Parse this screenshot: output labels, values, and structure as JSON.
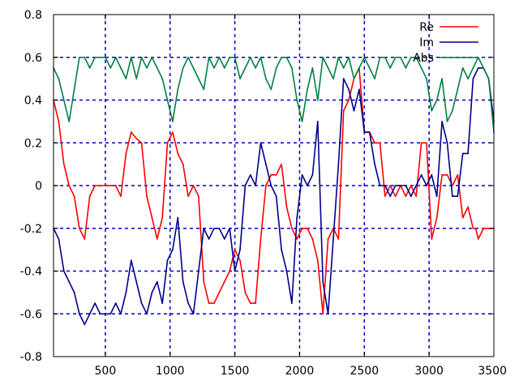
{
  "chart_data": {
    "type": "line",
    "title": "",
    "xlabel": "",
    "ylabel": "",
    "xlim": [
      100,
      3500
    ],
    "ylim": [
      -0.8,
      0.8
    ],
    "grid": true,
    "legend_position": "top-right",
    "x_ticks": [
      500,
      1000,
      1500,
      2000,
      2500,
      3000,
      3500
    ],
    "x_tick_labels": [
      "500",
      "1000",
      "1500",
      "2000",
      "2500",
      "3000",
      "3500"
    ],
    "y_ticks": [
      -0.8,
      -0.6,
      -0.4,
      -0.2,
      0,
      0.2,
      0.4,
      0.6,
      0.8
    ],
    "y_tick_labels": [
      "-0.8",
      "-0.6",
      "-0.4",
      "-0.2",
      "0",
      "0.2",
      "0.4",
      "0.6",
      "0.8"
    ],
    "series": [
      {
        "name": "Re",
        "color": "#ff0000",
        "x": [
          100,
          140,
          180,
          220,
          260,
          300,
          340,
          380,
          420,
          460,
          500,
          540,
          580,
          620,
          660,
          700,
          740,
          780,
          820,
          860,
          900,
          940,
          980,
          1020,
          1060,
          1100,
          1140,
          1180,
          1220,
          1260,
          1300,
          1340,
          1380,
          1420,
          1460,
          1500,
          1540,
          1580,
          1620,
          1660,
          1700,
          1740,
          1780,
          1820,
          1860,
          1900,
          1940,
          1980,
          2020,
          2060,
          2100,
          2140,
          2180,
          2220,
          2260,
          2300,
          2340,
          2380,
          2420,
          2460,
          2500,
          2540,
          2580,
          2620,
          2660,
          2700,
          2740,
          2780,
          2820,
          2860,
          2900,
          2940,
          2980,
          3020,
          3060,
          3100,
          3140,
          3180,
          3220,
          3260,
          3300,
          3340,
          3360,
          3380,
          3420,
          3460,
          3500
        ],
        "y": [
          0.4,
          0.3,
          0.1,
          0.0,
          -0.05,
          -0.2,
          -0.25,
          -0.05,
          0.0,
          0.0,
          0.0,
          0.0,
          0.0,
          -0.05,
          0.15,
          0.25,
          0.22,
          0.2,
          -0.05,
          -0.15,
          -0.25,
          -0.15,
          0.2,
          0.25,
          0.15,
          0.1,
          -0.05,
          0.0,
          -0.05,
          -0.45,
          -0.55,
          -0.55,
          -0.5,
          -0.45,
          -0.4,
          -0.3,
          -0.35,
          -0.5,
          -0.55,
          -0.55,
          -0.25,
          0.0,
          0.05,
          0.05,
          0.1,
          -0.1,
          -0.2,
          -0.25,
          -0.2,
          -0.2,
          -0.25,
          -0.35,
          -0.6,
          -0.25,
          -0.2,
          -0.25,
          0.35,
          0.4,
          0.5,
          0.55,
          0.25,
          0.25,
          0.2,
          0.2,
          -0.05,
          0.0,
          -0.05,
          0.0,
          -0.05,
          0.0,
          -0.05,
          0.2,
          0.2,
          -0.25,
          -0.15,
          0.05,
          0.05,
          0.0,
          0.05,
          -0.15,
          -0.1,
          -0.2,
          -0.2,
          -0.25,
          -0.2,
          -0.2,
          -0.2
        ]
      },
      {
        "name": "Im",
        "color": "#00008b",
        "x": [
          100,
          140,
          180,
          220,
          260,
          300,
          340,
          380,
          420,
          460,
          500,
          540,
          580,
          620,
          660,
          700,
          740,
          780,
          820,
          860,
          900,
          940,
          980,
          1020,
          1060,
          1100,
          1140,
          1180,
          1220,
          1260,
          1300,
          1340,
          1380,
          1420,
          1460,
          1500,
          1540,
          1580,
          1620,
          1660,
          1700,
          1740,
          1780,
          1820,
          1860,
          1900,
          1940,
          1980,
          2020,
          2060,
          2100,
          2140,
          2180,
          2220,
          2260,
          2300,
          2340,
          2380,
          2420,
          2460,
          2500,
          2540,
          2580,
          2620,
          2660,
          2700,
          2740,
          2780,
          2820,
          2860,
          2900,
          2940,
          2980,
          3020,
          3060,
          3100,
          3140,
          3180,
          3220,
          3260,
          3300,
          3340,
          3380,
          3420,
          3460,
          3500
        ],
        "y": [
          -0.2,
          -0.25,
          -0.4,
          -0.45,
          -0.5,
          -0.6,
          -0.65,
          -0.6,
          -0.55,
          -0.6,
          -0.6,
          -0.6,
          -0.55,
          -0.6,
          -0.5,
          -0.35,
          -0.45,
          -0.55,
          -0.6,
          -0.5,
          -0.45,
          -0.55,
          -0.35,
          -0.3,
          -0.15,
          -0.45,
          -0.55,
          -0.6,
          -0.4,
          -0.2,
          -0.25,
          -0.2,
          -0.2,
          -0.25,
          -0.2,
          -0.4,
          -0.3,
          0.0,
          0.05,
          0.0,
          0.2,
          0.1,
          0.0,
          -0.05,
          -0.3,
          -0.4,
          -0.55,
          -0.15,
          0.05,
          0.0,
          0.05,
          0.3,
          -0.45,
          -0.6,
          -0.25,
          0.1,
          0.5,
          0.45,
          0.35,
          0.45,
          0.25,
          0.25,
          0.1,
          0.0,
          0.0,
          -0.05,
          0.0,
          0.0,
          0.0,
          -0.05,
          0.0,
          0.05,
          0.0,
          0.05,
          -0.05,
          0.3,
          0.2,
          -0.05,
          -0.05,
          0.15,
          0.15,
          0.5,
          0.55,
          0.55,
          0.5,
          0.3
        ]
      },
      {
        "name": "Abs",
        "color": "#008040",
        "x": [
          100,
          140,
          180,
          220,
          260,
          300,
          340,
          380,
          420,
          460,
          500,
          540,
          580,
          620,
          660,
          700,
          740,
          780,
          820,
          860,
          900,
          940,
          980,
          1020,
          1060,
          1100,
          1140,
          1180,
          1220,
          1260,
          1300,
          1340,
          1380,
          1420,
          1460,
          1500,
          1540,
          1580,
          1620,
          1660,
          1700,
          1740,
          1780,
          1820,
          1860,
          1900,
          1940,
          1980,
          2020,
          2060,
          2100,
          2140,
          2180,
          2220,
          2260,
          2300,
          2340,
          2380,
          2420,
          2460,
          2500,
          2540,
          2580,
          2620,
          2660,
          2700,
          2740,
          2780,
          2820,
          2860,
          2900,
          2940,
          2980,
          3020,
          3060,
          3100,
          3140,
          3180,
          3220,
          3260,
          3300,
          3340,
          3380,
          3420,
          3460,
          3500
        ],
        "y": [
          0.55,
          0.5,
          0.4,
          0.3,
          0.45,
          0.6,
          0.6,
          0.55,
          0.6,
          0.6,
          0.6,
          0.55,
          0.6,
          0.55,
          0.5,
          0.6,
          0.5,
          0.6,
          0.55,
          0.6,
          0.55,
          0.5,
          0.4,
          0.3,
          0.45,
          0.55,
          0.6,
          0.55,
          0.5,
          0.45,
          0.6,
          0.55,
          0.6,
          0.55,
          0.6,
          0.6,
          0.5,
          0.55,
          0.6,
          0.55,
          0.6,
          0.5,
          0.45,
          0.55,
          0.6,
          0.6,
          0.55,
          0.4,
          0.3,
          0.45,
          0.55,
          0.4,
          0.6,
          0.55,
          0.5,
          0.6,
          0.55,
          0.6,
          0.5,
          0.55,
          0.6,
          0.55,
          0.5,
          0.6,
          0.6,
          0.55,
          0.6,
          0.6,
          0.55,
          0.6,
          0.6,
          0.55,
          0.5,
          0.35,
          0.4,
          0.5,
          0.3,
          0.35,
          0.45,
          0.55,
          0.5,
          0.55,
          0.6,
          0.55,
          0.5,
          0.25
        ]
      }
    ]
  }
}
